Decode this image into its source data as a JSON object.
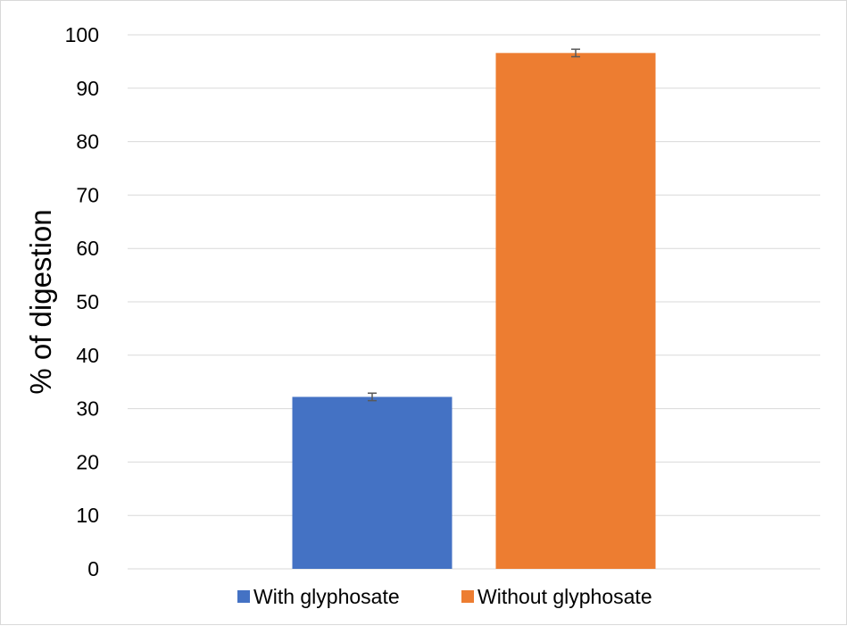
{
  "chart_data": {
    "type": "bar",
    "categories": [
      "With glyphosate",
      "Without glyphosate"
    ],
    "values": [
      32.2,
      96.6
    ],
    "errors": [
      0.7,
      0.7
    ],
    "series": [
      {
        "name": "With glyphosate",
        "value": 32.2,
        "error": 0.7,
        "color": "#4472C4"
      },
      {
        "name": "Without glyphosate",
        "value": 96.6,
        "error": 0.7,
        "color": "#ED7D31"
      }
    ],
    "title": "",
    "xlabel": "",
    "ylabel": "% of digestion",
    "ylim": [
      0,
      100
    ],
    "yticks": [
      0,
      10,
      20,
      30,
      40,
      50,
      60,
      70,
      80,
      90,
      100
    ],
    "grid": true,
    "legend_position": "bottom"
  }
}
